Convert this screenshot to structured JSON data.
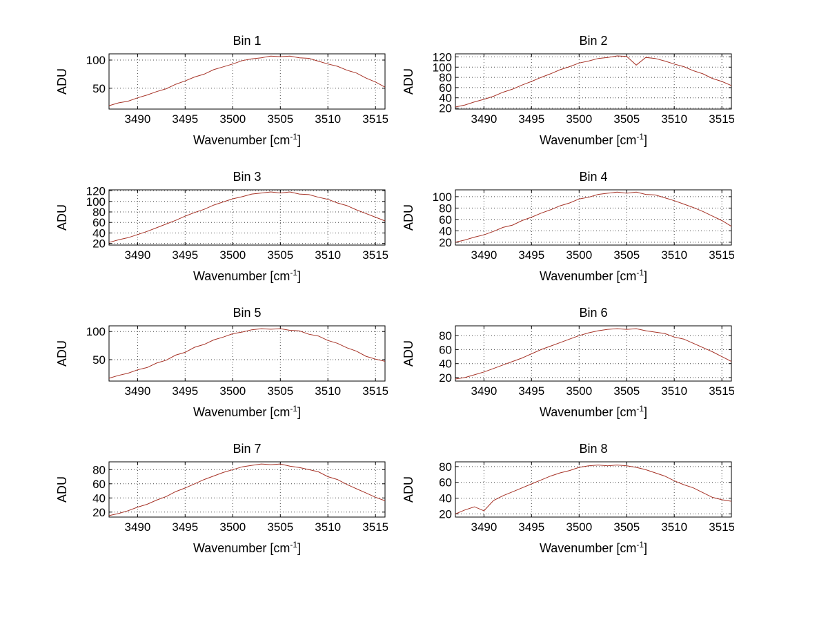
{
  "figure": {
    "background": "#ffffff",
    "line_color": "#a63226",
    "axis_color": "#000000",
    "grid_color": "#444444"
  },
  "chart_data": [
    {
      "type": "line",
      "title": "Bin 1",
      "ylabel": "ADU",
      "xlabel_parts": [
        "Wavenumber [cm",
        "-1",
        "]"
      ],
      "xlim": [
        3487,
        3516
      ],
      "ylim": [
        13,
        111
      ],
      "x_ticks": [
        3490,
        3495,
        3500,
        3505,
        3510,
        3515
      ],
      "y_ticks": [
        50,
        100
      ],
      "x_start": 3487,
      "x_step": 1,
      "values": [
        19,
        24,
        27,
        33,
        38,
        44,
        49,
        57,
        63,
        70,
        75,
        83,
        88,
        93,
        99,
        102,
        104,
        107,
        106,
        107,
        104,
        103,
        98,
        93,
        89,
        82,
        77,
        68,
        61,
        52
      ]
    },
    {
      "type": "line",
      "title": "Bin 2",
      "ylabel": "ADU",
      "xlabel_parts": [
        "Wavenumber [cm",
        "-1",
        "]"
      ],
      "xlim": [
        3487,
        3516
      ],
      "ylim": [
        18,
        126
      ],
      "x_ticks": [
        3490,
        3495,
        3500,
        3505,
        3510,
        3515
      ],
      "y_ticks": [
        20,
        40,
        60,
        80,
        100,
        120
      ],
      "x_start": 3487,
      "x_step": 1,
      "values": [
        22,
        26,
        32,
        37,
        43,
        51,
        57,
        65,
        72,
        80,
        87,
        95,
        101,
        108,
        112,
        117,
        119,
        122,
        121,
        104,
        119,
        117,
        112,
        106,
        101,
        93,
        87,
        78,
        72,
        64
      ]
    },
    {
      "type": "line",
      "title": "Bin 3",
      "ylabel": "ADU",
      "xlabel_parts": [
        "Wavenumber [cm",
        "-1",
        "]"
      ],
      "xlim": [
        3487,
        3516
      ],
      "ylim": [
        17,
        122
      ],
      "x_ticks": [
        3490,
        3495,
        3500,
        3505,
        3510,
        3515
      ],
      "y_ticks": [
        20,
        40,
        60,
        80,
        100,
        120
      ],
      "x_start": 3487,
      "x_step": 1,
      "values": [
        22,
        27,
        31,
        37,
        43,
        50,
        57,
        64,
        72,
        79,
        85,
        93,
        99,
        105,
        109,
        114,
        116,
        118,
        116,
        118,
        114,
        113,
        108,
        104,
        97,
        92,
        84,
        77,
        70,
        63
      ]
    },
    {
      "type": "line",
      "title": "Bin 4",
      "ylabel": "ADU",
      "xlabel_parts": [
        "Wavenumber [cm",
        "-1",
        "]"
      ],
      "xlim": [
        3487,
        3516
      ],
      "ylim": [
        15,
        112
      ],
      "x_ticks": [
        3490,
        3495,
        3500,
        3505,
        3510,
        3515
      ],
      "y_ticks": [
        20,
        40,
        60,
        80,
        100
      ],
      "x_start": 3487,
      "x_step": 1,
      "values": [
        20,
        24,
        29,
        33,
        39,
        46,
        50,
        58,
        64,
        71,
        77,
        84,
        89,
        96,
        99,
        104,
        106,
        108,
        106,
        108,
        104,
        103,
        98,
        93,
        87,
        81,
        74,
        66,
        58,
        48
      ]
    },
    {
      "type": "line",
      "title": "Bin 5",
      "ylabel": "ADU",
      "xlabel_parts": [
        "Wavenumber [cm",
        "-1",
        "]"
      ],
      "xlim": [
        3487,
        3516
      ],
      "ylim": [
        12,
        110
      ],
      "x_ticks": [
        3490,
        3495,
        3500,
        3505,
        3510,
        3515
      ],
      "y_ticks": [
        50,
        100
      ],
      "x_start": 3487,
      "x_step": 1,
      "values": [
        17,
        22,
        26,
        32,
        36,
        44,
        49,
        58,
        63,
        72,
        77,
        85,
        90,
        96,
        99,
        103,
        105,
        104,
        105,
        102,
        101,
        95,
        92,
        84,
        79,
        71,
        65,
        56,
        51,
        47
      ]
    },
    {
      "type": "line",
      "title": "Bin 6",
      "ylabel": "ADU",
      "xlabel_parts": [
        "Wavenumber [cm",
        "-1",
        "]"
      ],
      "xlim": [
        3487,
        3516
      ],
      "ylim": [
        15,
        94
      ],
      "x_ticks": [
        3490,
        3495,
        3500,
        3505,
        3510,
        3515
      ],
      "y_ticks": [
        20,
        40,
        60,
        80
      ],
      "x_start": 3487,
      "x_step": 1,
      "values": [
        18,
        20,
        24,
        28,
        33,
        38,
        43,
        48,
        54,
        60,
        65,
        70,
        75,
        80,
        84,
        87,
        89,
        90,
        89,
        90,
        87,
        85,
        83,
        78,
        75,
        69,
        63,
        57,
        50,
        43
      ]
    },
    {
      "type": "line",
      "title": "Bin 7",
      "ylabel": "ADU",
      "xlabel_parts": [
        "Wavenumber [cm",
        "-1",
        "]"
      ],
      "xlim": [
        3487,
        3516
      ],
      "ylim": [
        13,
        91
      ],
      "x_ticks": [
        3490,
        3495,
        3500,
        3505,
        3510,
        3515
      ],
      "y_ticks": [
        20,
        40,
        60,
        80
      ],
      "x_start": 3487,
      "x_step": 1,
      "values": [
        15,
        18,
        22,
        27,
        31,
        37,
        42,
        49,
        54,
        60,
        66,
        71,
        76,
        80,
        84,
        86,
        88,
        87,
        88,
        85,
        83,
        80,
        77,
        70,
        66,
        59,
        53,
        47,
        41,
        36
      ]
    },
    {
      "type": "line",
      "title": "Bin 8",
      "ylabel": "ADU",
      "xlabel_parts": [
        "Wavenumber [cm",
        "-1",
        "]"
      ],
      "xlim": [
        3487,
        3516
      ],
      "ylim": [
        16,
        86
      ],
      "x_ticks": [
        3490,
        3495,
        3500,
        3505,
        3510,
        3515
      ],
      "y_ticks": [
        20,
        40,
        60,
        80
      ],
      "x_start": 3487,
      "x_step": 1,
      "values": [
        20,
        25,
        29,
        24,
        37,
        43,
        48,
        53,
        58,
        63,
        68,
        72,
        75,
        79,
        81,
        82,
        81,
        82,
        81,
        79,
        76,
        72,
        68,
        62,
        57,
        53,
        47,
        41,
        38,
        36
      ]
    }
  ]
}
